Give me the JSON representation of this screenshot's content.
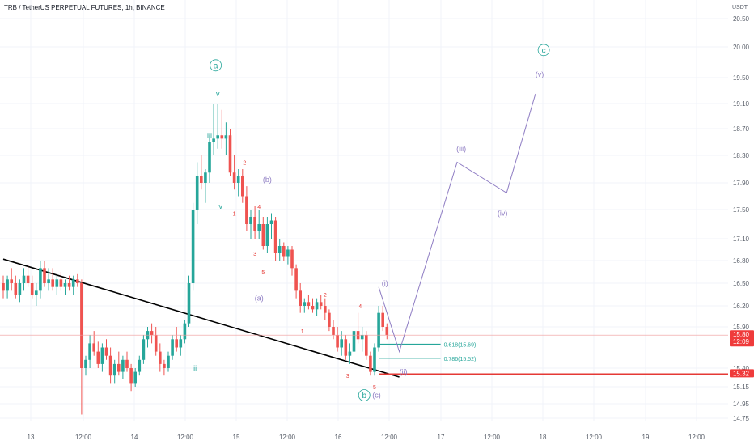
{
  "header": {
    "title": "TRB / TetherUS PERPETUAL FUTURES, 1h, BINANCE"
  },
  "price_axis": {
    "currency": "USDT"
  },
  "chart_data": {
    "type": "candlestick",
    "title": "TRB / TetherUS PERPETUAL FUTURES, 1h, BINANCE",
    "ylabel": "USDT",
    "ylim": [
      14.7,
      20.6
    ],
    "y_ticks": [
      "20.50",
      "20.00",
      "19.50",
      "19.10",
      "18.70",
      "18.30",
      "17.90",
      "17.50",
      "17.10",
      "16.80",
      "16.50",
      "16.20",
      "15.90",
      "15.40",
      "15.15",
      "14.95",
      "14.75"
    ],
    "x_ticks": [
      "13",
      "12:00",
      "14",
      "12:00",
      "15",
      "12:00",
      "16",
      "12:00",
      "17",
      "12:00",
      "18",
      "12:00",
      "19",
      "12:00"
    ],
    "colors": {
      "up": "#26a69a",
      "down": "#ef5350",
      "projection": "#8e7cc3",
      "trendline": "#000000",
      "support": "#e53935",
      "primary_wave": "#26a69a"
    },
    "candles": [
      [
        16.5,
        16.6,
        16.3,
        16.4
      ],
      [
        16.4,
        16.6,
        16.3,
        16.55
      ],
      [
        16.55,
        16.7,
        16.4,
        16.5
      ],
      [
        16.5,
        16.6,
        16.3,
        16.35
      ],
      [
        16.35,
        16.55,
        16.25,
        16.5
      ],
      [
        16.5,
        16.7,
        16.4,
        16.6
      ],
      [
        16.6,
        16.75,
        16.45,
        16.5
      ],
      [
        16.5,
        16.6,
        16.3,
        16.35
      ],
      [
        16.35,
        16.5,
        16.2,
        16.4
      ],
      [
        16.4,
        16.8,
        16.3,
        16.7
      ],
      [
        16.7,
        16.8,
        16.45,
        16.5
      ],
      [
        16.5,
        16.7,
        16.4,
        16.55
      ],
      [
        16.55,
        16.7,
        16.4,
        16.45
      ],
      [
        16.45,
        16.6,
        16.35,
        16.55
      ],
      [
        16.55,
        16.65,
        16.4,
        16.45
      ],
      [
        16.45,
        16.55,
        16.35,
        16.5
      ],
      [
        16.5,
        16.6,
        16.4,
        16.45
      ],
      [
        16.45,
        16.6,
        16.35,
        16.55
      ],
      [
        16.55,
        16.62,
        16.45,
        16.5
      ],
      [
        16.5,
        16.55,
        14.8,
        15.4
      ],
      [
        15.4,
        15.55,
        15.3,
        15.5
      ],
      [
        15.5,
        15.8,
        15.4,
        15.7
      ],
      [
        15.7,
        15.85,
        15.55,
        15.6
      ],
      [
        15.6,
        15.72,
        15.4,
        15.45
      ],
      [
        15.45,
        15.7,
        15.35,
        15.65
      ],
      [
        15.65,
        15.75,
        15.5,
        15.55
      ],
      [
        15.55,
        15.65,
        15.2,
        15.3
      ],
      [
        15.3,
        15.5,
        15.2,
        15.45
      ],
      [
        15.45,
        15.6,
        15.3,
        15.35
      ],
      [
        15.35,
        15.55,
        15.25,
        15.5
      ],
      [
        15.5,
        15.6,
        15.35,
        15.4
      ],
      [
        15.4,
        15.45,
        15.1,
        15.2
      ],
      [
        15.2,
        15.4,
        15.15,
        15.35
      ],
      [
        15.35,
        15.55,
        15.3,
        15.5
      ],
      [
        15.5,
        15.8,
        15.45,
        15.75
      ],
      [
        15.75,
        15.9,
        15.65,
        15.85
      ],
      [
        15.85,
        15.95,
        15.7,
        15.8
      ],
      [
        15.8,
        15.9,
        15.55,
        15.6
      ],
      [
        15.6,
        15.7,
        15.35,
        15.45
      ],
      [
        15.45,
        15.5,
        15.3,
        15.4
      ],
      [
        15.4,
        15.6,
        15.35,
        15.55
      ],
      [
        15.55,
        15.8,
        15.5,
        15.75
      ],
      [
        15.75,
        15.9,
        15.6,
        15.65
      ],
      [
        15.65,
        15.8,
        15.55,
        15.75
      ],
      [
        15.75,
        16.0,
        15.7,
        15.95
      ],
      [
        15.95,
        16.6,
        15.9,
        16.5
      ],
      [
        16.5,
        17.6,
        16.4,
        17.5
      ],
      [
        17.5,
        18.2,
        17.3,
        18.0
      ],
      [
        18.0,
        18.3,
        17.8,
        17.9
      ],
      [
        17.9,
        18.1,
        17.6,
        18.05
      ],
      [
        18.05,
        18.6,
        17.9,
        18.5
      ],
      [
        18.5,
        19.1,
        18.3,
        18.55
      ],
      [
        18.55,
        19.1,
        18.4,
        18.6
      ],
      [
        18.6,
        19.0,
        18.4,
        18.55
      ],
      [
        18.55,
        18.8,
        18.3,
        18.6
      ],
      [
        18.6,
        18.7,
        18.0,
        18.05
      ],
      [
        18.05,
        18.3,
        17.8,
        17.9
      ],
      [
        17.9,
        18.1,
        17.7,
        18.0
      ],
      [
        18.0,
        18.1,
        17.6,
        17.7
      ],
      [
        17.7,
        17.85,
        17.2,
        17.3
      ],
      [
        17.3,
        17.5,
        17.1,
        17.4
      ],
      [
        17.4,
        17.55,
        17.1,
        17.2
      ],
      [
        17.2,
        17.5,
        17.1,
        17.3
      ],
      [
        17.3,
        17.4,
        16.95,
        17.0
      ],
      [
        17.0,
        17.4,
        16.9,
        17.3
      ],
      [
        17.3,
        17.45,
        17.1,
        17.35
      ],
      [
        17.35,
        17.4,
        16.8,
        16.9
      ],
      [
        16.9,
        17.1,
        16.8,
        17.0
      ],
      [
        17.0,
        17.05,
        16.8,
        16.85
      ],
      [
        16.85,
        17.0,
        16.75,
        16.95
      ],
      [
        16.95,
        17.0,
        16.6,
        16.7
      ],
      [
        16.7,
        16.75,
        16.3,
        16.4
      ],
      [
        16.4,
        16.5,
        16.1,
        16.2
      ],
      [
        16.2,
        16.3,
        16.1,
        16.25
      ],
      [
        16.25,
        16.35,
        16.15,
        16.2
      ],
      [
        16.2,
        16.3,
        16.1,
        16.15
      ],
      [
        16.15,
        16.3,
        16.05,
        16.25
      ],
      [
        16.25,
        16.35,
        16.15,
        16.2
      ],
      [
        16.2,
        16.3,
        16.0,
        16.1
      ],
      [
        16.1,
        16.15,
        15.85,
        15.9
      ],
      [
        15.9,
        16.0,
        15.75,
        15.8
      ],
      [
        15.8,
        15.9,
        15.6,
        15.65
      ],
      [
        15.65,
        15.85,
        15.55,
        15.75
      ],
      [
        15.75,
        15.8,
        15.5,
        15.55
      ],
      [
        15.55,
        15.7,
        15.45,
        15.6
      ],
      [
        15.6,
        15.9,
        15.55,
        15.85
      ],
      [
        15.85,
        16.1,
        15.7,
        15.75
      ],
      [
        15.75,
        15.9,
        15.6,
        15.8
      ],
      [
        15.8,
        15.85,
        15.5,
        15.55
      ],
      [
        15.55,
        15.6,
        15.3,
        15.35
      ],
      [
        15.35,
        15.7,
        15.3,
        15.65
      ],
      [
        15.65,
        16.2,
        15.6,
        16.1
      ],
      [
        16.1,
        16.2,
        15.85,
        15.9
      ],
      [
        15.9,
        15.95,
        15.75,
        15.8
      ]
    ],
    "trendline": {
      "from": [
        0,
        16.82
      ],
      "to": [
        96,
        15.28
      ]
    },
    "support": {
      "from": [
        91,
        15.32
      ],
      "to": [
        150,
        15.32
      ],
      "label": "15.32"
    },
    "current_price": {
      "value": 15.8,
      "label": "15.80",
      "countdown": "12:09"
    },
    "fib_levels": [
      {
        "label": "0.618(15.69)",
        "price": 15.69,
        "from": 91,
        "to": 106
      },
      {
        "label": "0.786(15.52)",
        "price": 15.52,
        "from": 91,
        "to": 106
      }
    ],
    "projection": [
      [
        91,
        16.45
      ],
      [
        96,
        15.6
      ],
      [
        110,
        18.2
      ],
      [
        122,
        17.75
      ],
      [
        129,
        19.25
      ]
    ],
    "annotations": [
      {
        "text": "a",
        "i": 51.5,
        "p": 19.7,
        "kind": "circle"
      },
      {
        "text": "b",
        "i": 87.5,
        "p": 15.05,
        "kind": "circle"
      },
      {
        "text": "c",
        "i": 131,
        "p": 19.95,
        "kind": "circle"
      },
      {
        "text": "v",
        "i": 52,
        "p": 19.25,
        "kind": "teal"
      },
      {
        "text": "iii",
        "i": 50,
        "p": 18.6,
        "kind": "teal"
      },
      {
        "text": "iv",
        "i": 52.5,
        "p": 17.55,
        "kind": "teal"
      },
      {
        "text": "i",
        "i": 45,
        "p": 16.25,
        "kind": "teal"
      },
      {
        "text": "ii",
        "i": 46.5,
        "p": 15.4,
        "kind": "teal"
      },
      {
        "text": "(a)",
        "i": 62,
        "p": 16.3,
        "kind": "purple"
      },
      {
        "text": "(b)",
        "i": 64,
        "p": 17.95,
        "kind": "purple"
      },
      {
        "text": "(c)",
        "i": 90.5,
        "p": 15.05,
        "kind": "purple"
      },
      {
        "text": "(i)",
        "i": 92.5,
        "p": 16.5,
        "kind": "purple"
      },
      {
        "text": "(ii)",
        "i": 97,
        "p": 15.35,
        "kind": "purple"
      },
      {
        "text": "(iii)",
        "i": 111,
        "p": 18.4,
        "kind": "purple"
      },
      {
        "text": "(iv)",
        "i": 121,
        "p": 17.45,
        "kind": "purple"
      },
      {
        "text": "(v)",
        "i": 130,
        "p": 19.55,
        "kind": "purple"
      },
      {
        "text": "2",
        "i": 58.5,
        "p": 18.2,
        "kind": "red"
      },
      {
        "text": "1",
        "i": 56,
        "p": 17.45,
        "kind": "red"
      },
      {
        "text": "4",
        "i": 62,
        "p": 17.55,
        "kind": "red"
      },
      {
        "text": "3",
        "i": 61,
        "p": 16.9,
        "kind": "red"
      },
      {
        "text": "5",
        "i": 63,
        "p": 16.65,
        "kind": "red"
      },
      {
        "text": "2",
        "i": 78,
        "p": 16.35,
        "kind": "red"
      },
      {
        "text": "1",
        "i": 72.5,
        "p": 15.85,
        "kind": "red"
      },
      {
        "text": "4",
        "i": 86.5,
        "p": 16.2,
        "kind": "red"
      },
      {
        "text": "3",
        "i": 83.5,
        "p": 15.3,
        "kind": "red"
      },
      {
        "text": "5",
        "i": 90,
        "p": 15.15,
        "kind": "red"
      }
    ],
    "grid": true
  }
}
